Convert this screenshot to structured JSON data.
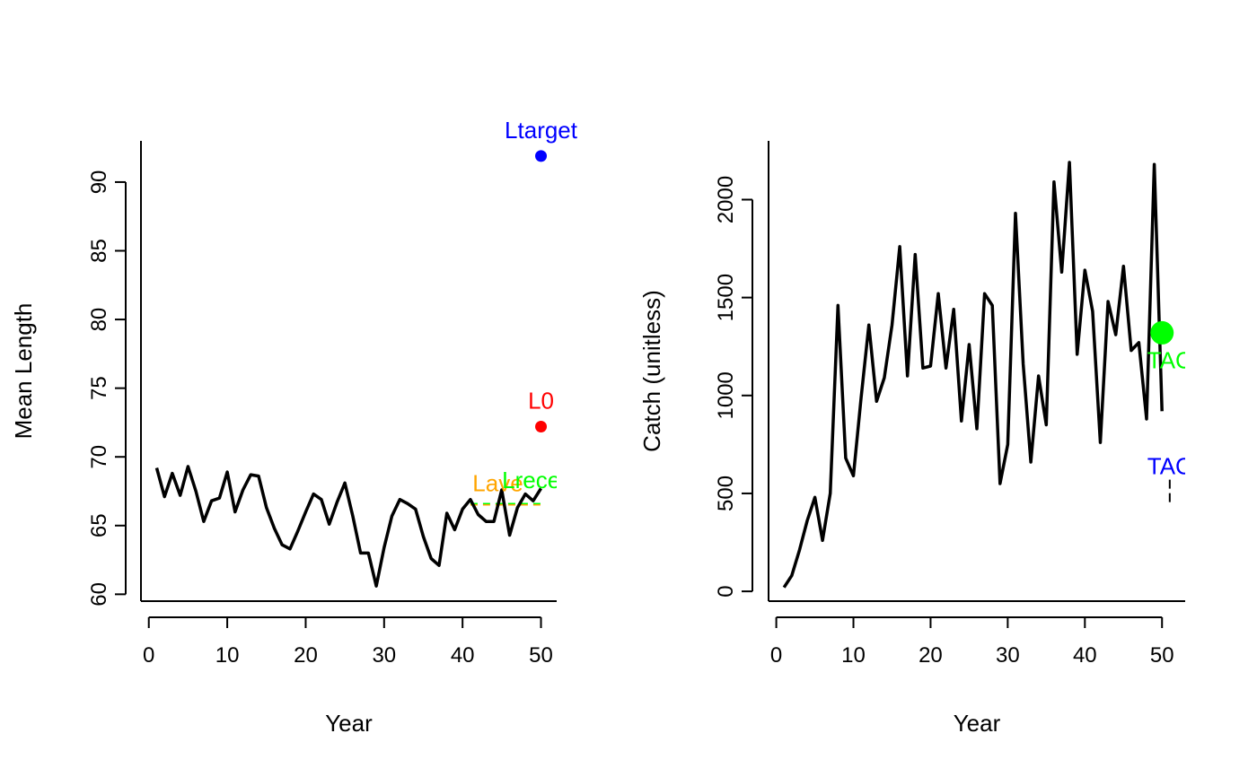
{
  "chart_data": [
    {
      "type": "line",
      "title": "",
      "xlabel": "Year",
      "ylabel": "Mean Length",
      "xlim": [
        -1,
        52
      ],
      "ylim": [
        59.5,
        93
      ],
      "x_ticks": [
        0,
        10,
        20,
        30,
        40,
        50
      ],
      "y_ticks": [
        60,
        65,
        70,
        75,
        80,
        85,
        90
      ],
      "grid": false,
      "legend": "none",
      "series": [
        {
          "color": "#000000",
          "x": [
            1,
            2,
            3,
            4,
            5,
            6,
            7,
            8,
            9,
            10,
            11,
            12,
            13,
            14,
            15,
            16,
            17,
            18,
            19,
            20,
            21,
            22,
            23,
            24,
            25,
            26,
            27,
            28,
            29,
            30,
            31,
            32,
            33,
            34,
            35,
            36,
            37,
            38,
            39,
            40,
            41,
            42,
            43,
            44,
            45,
            46,
            47,
            48,
            49,
            50
          ],
          "y": [
            69.2,
            67.1,
            68.8,
            67.2,
            69.3,
            67.5,
            65.3,
            66.8,
            67.0,
            68.9,
            66.0,
            67.6,
            68.7,
            68.6,
            66.3,
            64.8,
            63.6,
            63.3,
            64.6,
            66.0,
            67.3,
            66.9,
            65.1,
            66.7,
            68.1,
            65.7,
            63.0,
            63.0,
            60.6,
            63.4,
            65.7,
            66.9,
            66.6,
            66.2,
            64.2,
            62.6,
            62.1,
            65.9,
            64.7,
            66.2,
            66.9,
            65.8,
            65.3,
            65.3,
            67.6,
            64.3,
            66.3,
            67.3,
            66.8,
            67.7
          ]
        }
      ],
      "reference_lines": [
        {
          "label": "Lave",
          "color": "#FFA500",
          "style": "dashed",
          "x": [
            41,
            50
          ],
          "y": [
            66.5,
            66.5
          ]
        },
        {
          "label": "Lrecent",
          "color": "#00FF00",
          "style": "dashed",
          "x": [
            41,
            50
          ],
          "y": [
            66.6,
            66.6
          ]
        }
      ],
      "points": [
        {
          "label": "Ltarget",
          "color": "#0000FF",
          "x": 50,
          "y": 91.9
        },
        {
          "label": "L0",
          "color": "#FF0000",
          "x": 50,
          "y": 72.2
        }
      ],
      "annotations": [
        {
          "text": "Lave",
          "color": "#FFA500",
          "x": 44.5,
          "y": 68.1
        },
        {
          "text": "Lrecent",
          "color": "#00FF00",
          "x": 50,
          "y": 68.3
        }
      ]
    },
    {
      "type": "line",
      "title": "",
      "xlabel": "Year",
      "ylabel": "Catch (unitless)",
      "xlim": [
        -1,
        53
      ],
      "ylim": [
        -50,
        2300
      ],
      "x_ticks": [
        0,
        10,
        20,
        30,
        40,
        50
      ],
      "y_ticks": [
        0,
        500,
        1000,
        1500,
        2000
      ],
      "grid": false,
      "legend": "none",
      "series": [
        {
          "color": "#000000",
          "x": [
            1,
            2,
            3,
            4,
            5,
            6,
            7,
            8,
            9,
            10,
            11,
            12,
            13,
            14,
            15,
            16,
            17,
            18,
            19,
            20,
            21,
            22,
            23,
            24,
            25,
            26,
            27,
            28,
            29,
            30,
            31,
            32,
            33,
            34,
            35,
            36,
            37,
            38,
            39,
            40,
            41,
            42,
            43,
            44,
            45,
            46,
            47,
            48,
            49,
            50
          ],
          "y": [
            20,
            80,
            210,
            360,
            480,
            260,
            500,
            1460,
            680,
            590,
            990,
            1360,
            970,
            1090,
            1360,
            1760,
            1100,
            1720,
            1140,
            1150,
            1520,
            1140,
            1440,
            870,
            1260,
            830,
            1520,
            1460,
            550,
            750,
            1930,
            1160,
            660,
            1100,
            850,
            2090,
            1630,
            2190,
            1210,
            1640,
            1430,
            760,
            1480,
            1310,
            1660,
            1230,
            1270,
            880,
            2180,
            920
          ]
        }
      ],
      "points": [
        {
          "label": "TAC",
          "color": "#00FF00",
          "x": 50,
          "y": 1320
        }
      ],
      "annotations": [
        {
          "text": "TAC",
          "color": "#00FF00",
          "x": 51,
          "y": 1180
        },
        {
          "text": "TAC",
          "color": "#0000FF",
          "x": 51,
          "y": 640
        }
      ],
      "whisker": {
        "color": "#000000",
        "x": 51,
        "y": [
          450,
          570
        ]
      }
    }
  ]
}
